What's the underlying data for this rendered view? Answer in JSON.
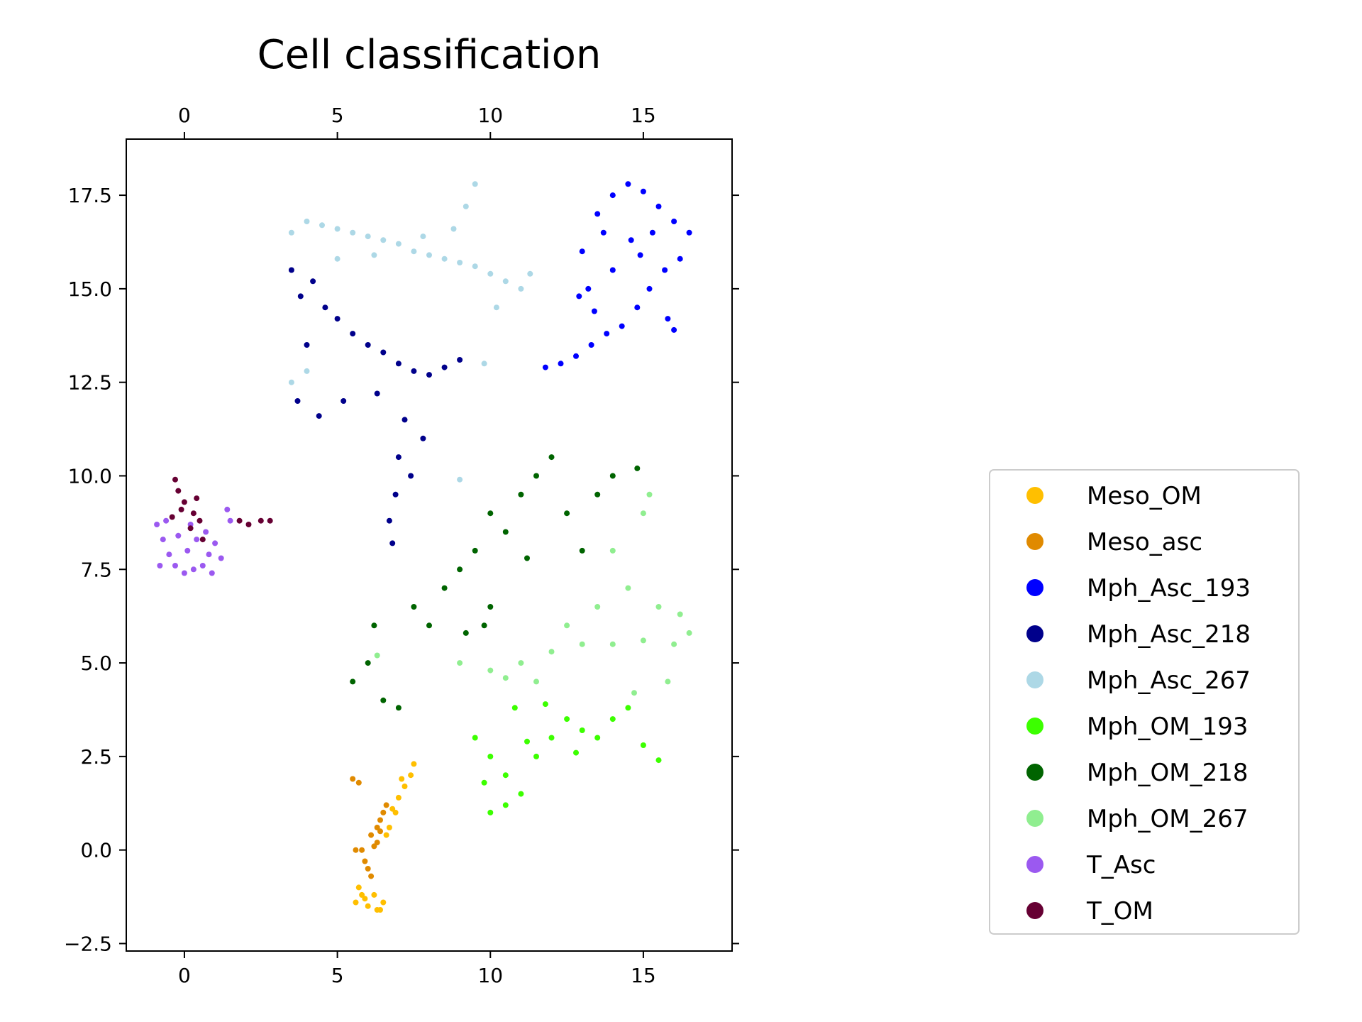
{
  "chart_data": {
    "type": "scatter",
    "title": "Cell classification",
    "xlabel": "",
    "ylabel": "",
    "xlim": [
      -1.9,
      17.9
    ],
    "ylim": [
      -2.7,
      19.0
    ],
    "x_ticks": [
      0,
      5,
      10,
      15
    ],
    "x_tick_labels": [
      "0",
      "5",
      "10",
      "15"
    ],
    "y_ticks": [
      -2.5,
      0.0,
      2.5,
      5.0,
      7.5,
      10.0,
      12.5,
      15.0,
      17.5
    ],
    "y_tick_labels": [
      "−2.5",
      "0.0",
      "2.5",
      "5.0",
      "7.5",
      "10.0",
      "12.5",
      "15.0",
      "17.5"
    ],
    "x_ticks_top_and_bottom": true,
    "y_ticks_left_and_right": true,
    "grid": false,
    "legend_position": "right, outside plot",
    "series": [
      {
        "name": "Meso_OM",
        "color": "#FFBF00",
        "approx_center": [
          6.6,
          0.5
        ],
        "points": [
          [
            5.6,
            -1.4
          ],
          [
            5.8,
            -1.2
          ],
          [
            6.0,
            -1.5
          ],
          [
            6.3,
            -1.6
          ],
          [
            6.5,
            -1.4
          ],
          [
            5.7,
            -1.0
          ],
          [
            6.2,
            -1.2
          ],
          [
            6.7,
            0.6
          ],
          [
            6.9,
            1.0
          ],
          [
            7.0,
            1.4
          ],
          [
            7.2,
            1.7
          ],
          [
            7.4,
            2.0
          ],
          [
            7.5,
            2.3
          ],
          [
            6.8,
            1.1
          ],
          [
            7.1,
            1.9
          ],
          [
            6.6,
            0.4
          ],
          [
            6.4,
            -1.6
          ],
          [
            5.9,
            -1.3
          ]
        ]
      },
      {
        "name": "Meso_asc",
        "color": "#E08A00",
        "approx_center": [
          6.2,
          0.3
        ],
        "points": [
          [
            5.5,
            1.9
          ],
          [
            5.7,
            1.8
          ],
          [
            6.1,
            0.4
          ],
          [
            6.3,
            0.6
          ],
          [
            6.5,
            1.0
          ],
          [
            6.4,
            0.8
          ],
          [
            6.2,
            0.1
          ],
          [
            6.0,
            -0.5
          ],
          [
            5.9,
            -0.3
          ],
          [
            5.8,
            0.0
          ],
          [
            6.3,
            0.2
          ],
          [
            6.6,
            1.2
          ],
          [
            6.1,
            -0.7
          ],
          [
            6.4,
            0.5
          ],
          [
            5.6,
            0.0
          ]
        ]
      },
      {
        "name": "Mph_Asc_193",
        "color": "#0000FF",
        "approx_center": [
          14.3,
          15.3
        ],
        "points": [
          [
            13.0,
            16.0
          ],
          [
            13.5,
            17.0
          ],
          [
            14.0,
            17.5
          ],
          [
            14.5,
            17.8
          ],
          [
            15.0,
            17.6
          ],
          [
            15.5,
            17.2
          ],
          [
            16.0,
            16.8
          ],
          [
            16.5,
            16.5
          ],
          [
            16.2,
            15.8
          ],
          [
            15.7,
            15.5
          ],
          [
            15.2,
            15.0
          ],
          [
            14.8,
            14.5
          ],
          [
            14.3,
            14.0
          ],
          [
            13.8,
            13.8
          ],
          [
            13.3,
            13.5
          ],
          [
            12.8,
            13.2
          ],
          [
            12.3,
            13.0
          ],
          [
            11.8,
            12.9
          ],
          [
            13.2,
            15.0
          ],
          [
            14.0,
            15.5
          ],
          [
            14.6,
            16.3
          ],
          [
            15.3,
            16.5
          ],
          [
            15.8,
            14.2
          ],
          [
            16.0,
            13.9
          ],
          [
            13.7,
            16.5
          ],
          [
            14.9,
            15.9
          ],
          [
            12.9,
            14.8
          ],
          [
            13.4,
            14.4
          ]
        ]
      },
      {
        "name": "Mph_Asc_218",
        "color": "#00008B",
        "approx_center": [
          6.5,
          13.0
        ],
        "points": [
          [
            3.5,
            15.5
          ],
          [
            3.8,
            14.8
          ],
          [
            4.2,
            15.2
          ],
          [
            4.6,
            14.5
          ],
          [
            5.0,
            14.2
          ],
          [
            5.5,
            13.8
          ],
          [
            6.0,
            13.5
          ],
          [
            6.5,
            13.3
          ],
          [
            7.0,
            13.0
          ],
          [
            7.5,
            12.8
          ],
          [
            8.0,
            12.7
          ],
          [
            8.5,
            12.9
          ],
          [
            9.0,
            13.1
          ],
          [
            7.2,
            11.5
          ],
          [
            7.0,
            10.5
          ],
          [
            6.9,
            9.5
          ],
          [
            6.7,
            8.8
          ],
          [
            6.8,
            8.2
          ],
          [
            7.4,
            10.0
          ],
          [
            4.0,
            13.5
          ],
          [
            3.7,
            12.0
          ],
          [
            5.2,
            12.0
          ],
          [
            4.4,
            11.6
          ],
          [
            6.3,
            12.2
          ],
          [
            7.8,
            11.0
          ]
        ]
      },
      {
        "name": "Mph_Asc_267",
        "color": "#ADD8E6",
        "approx_center": [
          7.5,
          15.6
        ],
        "points": [
          [
            3.5,
            16.5
          ],
          [
            4.0,
            16.8
          ],
          [
            4.5,
            16.7
          ],
          [
            5.0,
            16.6
          ],
          [
            5.5,
            16.5
          ],
          [
            6.0,
            16.4
          ],
          [
            6.5,
            16.3
          ],
          [
            7.0,
            16.2
          ],
          [
            7.5,
            16.0
          ],
          [
            8.0,
            15.9
          ],
          [
            8.5,
            15.8
          ],
          [
            9.0,
            15.7
          ],
          [
            9.5,
            15.6
          ],
          [
            10.0,
            15.4
          ],
          [
            10.5,
            15.2
          ],
          [
            11.0,
            15.0
          ],
          [
            11.3,
            15.4
          ],
          [
            9.5,
            17.8
          ],
          [
            9.2,
            17.2
          ],
          [
            3.5,
            12.5
          ],
          [
            4.0,
            12.8
          ],
          [
            5.0,
            15.8
          ],
          [
            6.2,
            15.9
          ],
          [
            7.8,
            16.4
          ],
          [
            8.8,
            16.6
          ],
          [
            10.2,
            14.5
          ],
          [
            9.8,
            13.0
          ],
          [
            9.0,
            9.9
          ]
        ]
      },
      {
        "name": "Mph_OM_193",
        "color": "#3CFF00",
        "approx_center": [
          11.5,
          2.8
        ],
        "points": [
          [
            9.5,
            3.0
          ],
          [
            10.0,
            2.5
          ],
          [
            10.5,
            2.0
          ],
          [
            11.0,
            1.5
          ],
          [
            10.0,
            1.0
          ],
          [
            10.5,
            1.2
          ],
          [
            11.5,
            2.5
          ],
          [
            12.0,
            3.0
          ],
          [
            12.5,
            3.5
          ],
          [
            13.0,
            3.2
          ],
          [
            13.5,
            3.0
          ],
          [
            14.0,
            3.5
          ],
          [
            14.5,
            3.8
          ],
          [
            15.0,
            2.8
          ],
          [
            15.5,
            2.4
          ],
          [
            9.8,
            1.8
          ],
          [
            10.8,
            3.8
          ],
          [
            11.8,
            3.9
          ],
          [
            12.8,
            2.6
          ],
          [
            11.2,
            2.9
          ]
        ]
      },
      {
        "name": "Mph_OM_218",
        "color": "#006400",
        "approx_center": [
          10.5,
          7.5
        ],
        "points": [
          [
            5.5,
            4.5
          ],
          [
            6.0,
            5.0
          ],
          [
            6.5,
            4.0
          ],
          [
            7.0,
            3.8
          ],
          [
            6.2,
            6.0
          ],
          [
            7.5,
            6.5
          ],
          [
            8.0,
            6.0
          ],
          [
            8.5,
            7.0
          ],
          [
            9.0,
            7.5
          ],
          [
            9.5,
            8.0
          ],
          [
            10.0,
            9.0
          ],
          [
            10.5,
            8.5
          ],
          [
            11.0,
            9.5
          ],
          [
            11.5,
            10.0
          ],
          [
            12.0,
            10.5
          ],
          [
            12.5,
            9.0
          ],
          [
            13.0,
            8.0
          ],
          [
            13.5,
            9.5
          ],
          [
            14.0,
            10.0
          ],
          [
            14.8,
            10.2
          ],
          [
            10.0,
            6.5
          ],
          [
            9.2,
            5.8
          ],
          [
            11.2,
            7.8
          ],
          [
            9.8,
            6.0
          ]
        ]
      },
      {
        "name": "Mph_OM_267",
        "color": "#90EE90",
        "approx_center": [
          13.5,
          5.5
        ],
        "points": [
          [
            9.0,
            5.0
          ],
          [
            10.0,
            4.8
          ],
          [
            11.0,
            5.0
          ],
          [
            12.0,
            5.3
          ],
          [
            13.0,
            5.5
          ],
          [
            14.0,
            5.5
          ],
          [
            15.0,
            5.6
          ],
          [
            16.0,
            5.5
          ],
          [
            16.5,
            5.8
          ],
          [
            15.5,
            6.5
          ],
          [
            14.5,
            7.0
          ],
          [
            14.0,
            8.0
          ],
          [
            15.0,
            9.0
          ],
          [
            15.2,
            9.5
          ],
          [
            13.5,
            6.5
          ],
          [
            12.5,
            6.0
          ],
          [
            11.5,
            4.5
          ],
          [
            10.5,
            4.6
          ],
          [
            6.3,
            5.2
          ],
          [
            15.8,
            4.5
          ],
          [
            14.7,
            4.2
          ],
          [
            16.2,
            6.3
          ]
        ]
      },
      {
        "name": "T_Asc",
        "color": "#9B59F0",
        "approx_center": [
          0.3,
          8.1
        ],
        "points": [
          [
            -0.9,
            8.7
          ],
          [
            -0.7,
            8.3
          ],
          [
            -0.5,
            7.9
          ],
          [
            -0.3,
            7.6
          ],
          [
            0.0,
            7.4
          ],
          [
            0.3,
            7.5
          ],
          [
            0.6,
            7.6
          ],
          [
            0.9,
            7.4
          ],
          [
            1.2,
            7.8
          ],
          [
            1.0,
            8.2
          ],
          [
            0.7,
            8.5
          ],
          [
            0.4,
            8.3
          ],
          [
            0.1,
            8.0
          ],
          [
            -0.2,
            8.4
          ],
          [
            -0.6,
            8.8
          ],
          [
            1.4,
            9.1
          ],
          [
            1.5,
            8.8
          ],
          [
            -0.8,
            7.6
          ],
          [
            0.2,
            8.7
          ],
          [
            0.8,
            7.9
          ]
        ]
      },
      {
        "name": "T_OM",
        "color": "#660033",
        "approx_center": [
          0.3,
          8.9
        ],
        "points": [
          [
            -0.3,
            9.9
          ],
          [
            -0.2,
            9.6
          ],
          [
            0.0,
            9.3
          ],
          [
            0.3,
            9.0
          ],
          [
            0.5,
            8.8
          ],
          [
            0.2,
            8.6
          ],
          [
            -0.1,
            9.1
          ],
          [
            0.4,
            9.4
          ],
          [
            1.8,
            8.8
          ],
          [
            2.1,
            8.7
          ],
          [
            2.5,
            8.8
          ],
          [
            2.8,
            8.8
          ],
          [
            0.6,
            8.3
          ],
          [
            -0.4,
            8.9
          ]
        ]
      }
    ]
  }
}
